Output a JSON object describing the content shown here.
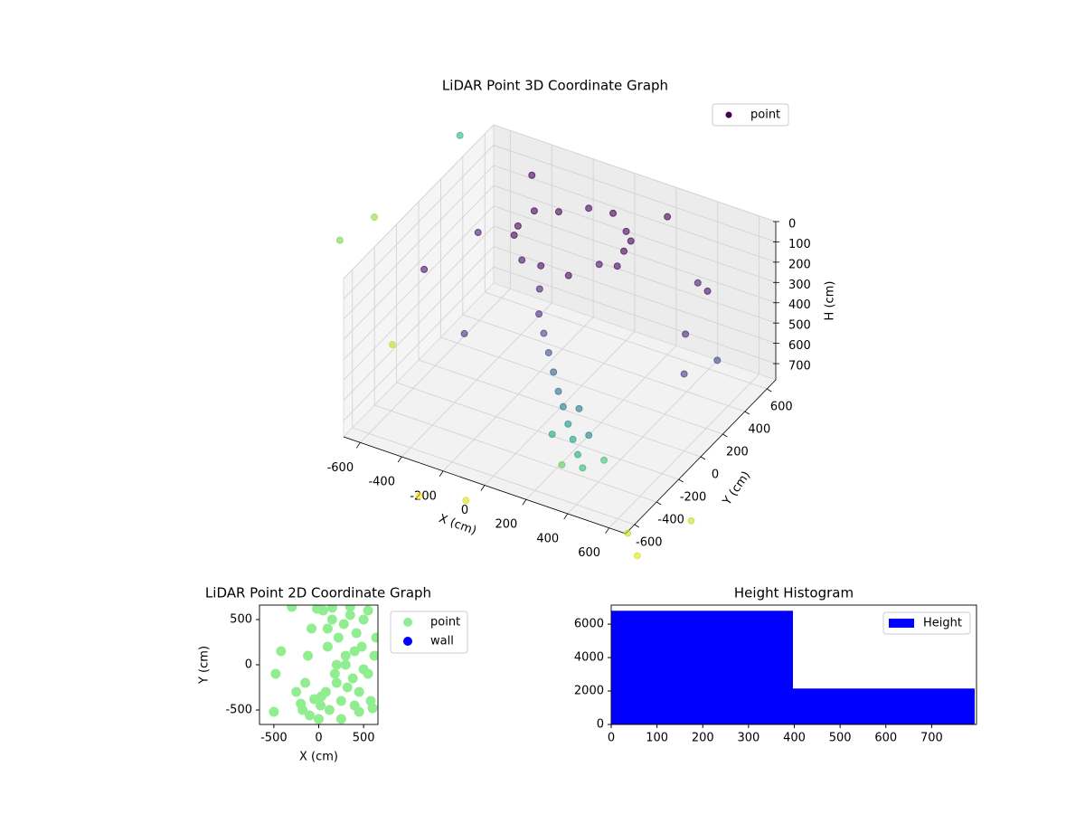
{
  "chart_data": [
    {
      "type": "scatter3d",
      "title": "LiDAR Point 3D Coordinate Graph",
      "x_label": "X (cm)",
      "y_label": "Y (cm)",
      "z_label": "H (cm)",
      "xlim": [
        -680,
        680
      ],
      "ylim": [
        -680,
        680
      ],
      "zlim": [
        780,
        0
      ],
      "xticks": [
        -600,
        -400,
        -200,
        0,
        200,
        400,
        600
      ],
      "yticks": [
        -600,
        -400,
        -200,
        0,
        200,
        400,
        600
      ],
      "zticks": [
        0,
        100,
        200,
        300,
        400,
        500,
        600,
        700
      ],
      "grid": true,
      "legend": "upper right",
      "series": [
        {
          "name": "point",
          "color": "#440154",
          "x": [
            150,
            125,
            60,
            -30,
            -150,
            -260,
            -330,
            -350,
            -310,
            -230,
            -120,
            0,
            100,
            150,
            -150,
            -100,
            -50,
            0,
            50,
            100,
            150,
            200,
            250,
            300,
            350,
            200,
            300,
            400,
            250,
            150,
            -500,
            -600,
            400,
            500,
            600,
            -300,
            200,
            -400,
            500,
            600,
            -900,
            -1000,
            -800,
            -700,
            800,
            700,
            900,
            -200,
            0
          ],
          "y": [
            300,
            410,
            490,
            540,
            545,
            480,
            390,
            280,
            170,
            90,
            55,
            80,
            170,
            240,
            100,
            0,
            -50,
            -100,
            -150,
            -200,
            -250,
            -300,
            -350,
            -400,
            -450,
            -200,
            -300,
            -350,
            -450,
            -350,
            200,
            -100,
            500,
            200,
            0,
            -300,
            600,
            500,
            400,
            300,
            -300,
            200,
            600,
            -200,
            -800,
            -700,
            -500,
            -900,
            -850
          ],
          "z": [
            120,
            140,
            160,
            130,
            150,
            170,
            140,
            160,
            130,
            180,
            150,
            170,
            130,
            160,
            300,
            350,
            400,
            450,
            500,
            550,
            580,
            620,
            650,
            680,
            700,
            600,
            640,
            700,
            720,
            660,
            200,
            250,
            300,
            350,
            400,
            350,
            100,
            50,
            250,
            500,
            100,
            300,
            50,
            600,
            780,
            760,
            740,
            780,
            760
          ],
          "colors": [
            "#440154",
            "#450457",
            "#46085c",
            "#440154",
            "#46085c",
            "#450457",
            "#440154",
            "#46085c",
            "#450457",
            "#471365",
            "#46085c",
            "#450457",
            "#471365",
            "#46085c",
            "#482475",
            "#472c7a",
            "#414487",
            "#3b528b",
            "#355f8d",
            "#2c728e",
            "#287c8e",
            "#21918c",
            "#1f9e89",
            "#22a884",
            "#35b779",
            "#2a788e",
            "#25858e",
            "#44bf70",
            "#5ec962",
            "#20a486",
            "#481a6c",
            "#471365",
            "#481f70",
            "#482878",
            "#443983",
            "#46327e",
            "#440154",
            "#440154",
            "#470d60",
            "#3e4989",
            "#7ad151",
            "#95d840",
            "#2db27d",
            "#b8de29",
            "#dde318",
            "#bddf26",
            "#c2df23",
            "#fde725",
            "#d8e219"
          ]
        }
      ]
    },
    {
      "type": "scatter",
      "title": "LiDAR Point 2D Coordinate Graph",
      "x_label": "X (cm)",
      "y_label": "Y (cm)",
      "xlim": [
        -660,
        660
      ],
      "ylim": [
        -660,
        660
      ],
      "xticks": [
        -500,
        0,
        500
      ],
      "yticks": [
        -500,
        0,
        500
      ],
      "legend": "outside right",
      "series": [
        {
          "name": "point",
          "color": "#90ee90",
          "x": [
            -500,
            -480,
            -420,
            -300,
            -250,
            -200,
            -180,
            -150,
            -120,
            -100,
            -80,
            -50,
            0,
            20,
            50,
            80,
            100,
            120,
            150,
            180,
            200,
            220,
            250,
            280,
            300,
            320,
            350,
            380,
            400,
            420,
            450,
            480,
            500,
            550,
            580,
            600,
            620,
            640,
            100,
            200,
            300,
            400,
            500,
            -20,
            30,
            150,
            250,
            350,
            450,
            550
          ],
          "y": [
            -520,
            -100,
            150,
            640,
            -300,
            -430,
            -500,
            -200,
            100,
            -560,
            400,
            -380,
            -600,
            -450,
            600,
            -300,
            200,
            -500,
            500,
            -100,
            0,
            300,
            -400,
            450,
            100,
            -250,
            550,
            -150,
            -450,
            350,
            -300,
            200,
            -50,
            600,
            -400,
            -480,
            100,
            300,
            400,
            -200,
            0,
            150,
            500,
            620,
            -350,
            630,
            -600,
            640,
            -520,
            -100
          ]
        },
        {
          "name": "wall",
          "color": "#0000ff",
          "x": [],
          "y": []
        }
      ]
    },
    {
      "type": "histogram",
      "title": "Height Histogram",
      "bins": [
        0,
        397,
        794
      ],
      "xlim": [
        0,
        798
      ],
      "ylim": [
        0,
        7140
      ],
      "xticks": [
        0,
        100,
        200,
        300,
        400,
        500,
        600,
        700
      ],
      "yticks": [
        0,
        2000,
        4000,
        6000
      ],
      "legend": "upper right",
      "series": [
        {
          "name": "Height",
          "color": "#0000ff",
          "values": [
            6800,
            2150
          ]
        }
      ]
    }
  ]
}
